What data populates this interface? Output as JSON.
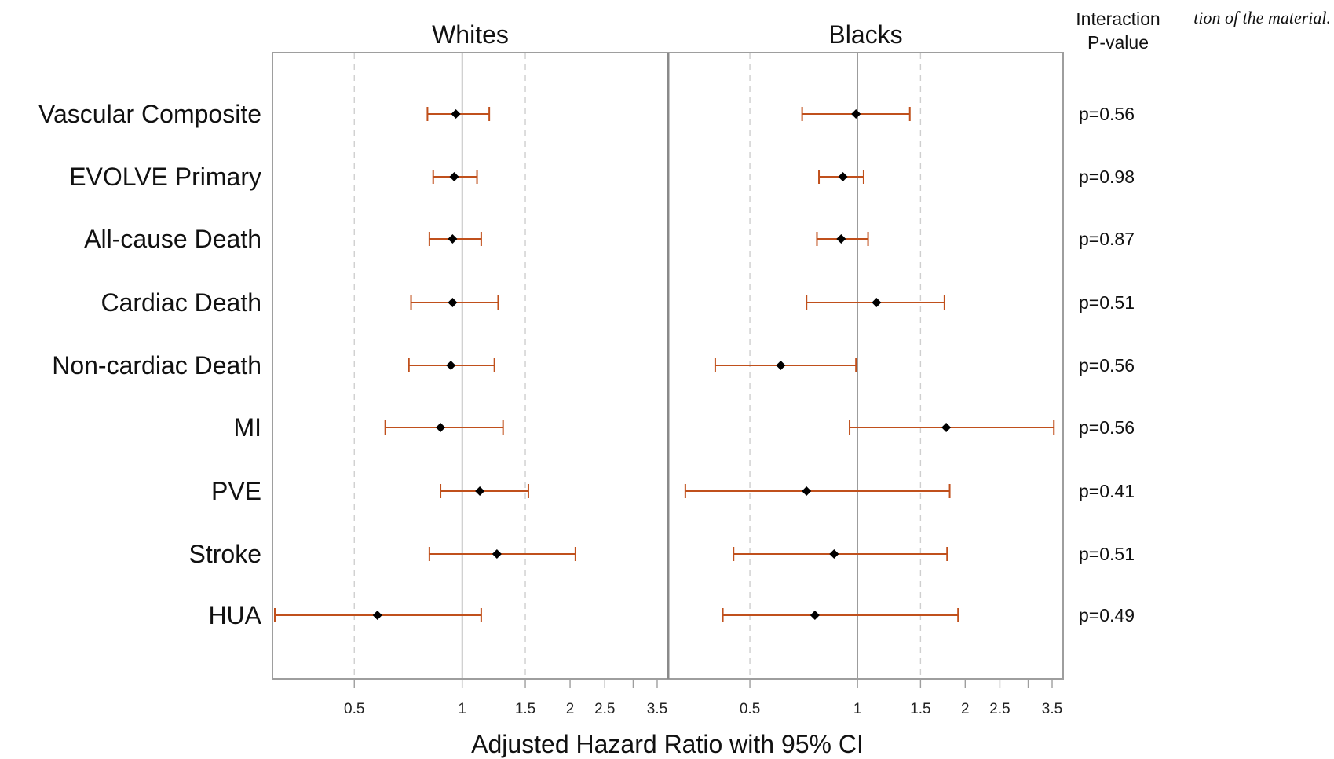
{
  "corner_note": "tion of the material.",
  "chart_data": {
    "type": "forest",
    "xlabel": "Adjusted Hazard Ratio with 95% CI",
    "x_scale": "log",
    "xlim": [
      0.3,
      3.7
    ],
    "x_ticks": [
      "0.5",
      "1",
      "1.5",
      "2",
      "2.5",
      "3.5"
    ],
    "x_tick_values": [
      0.5,
      1,
      1.5,
      2,
      2.5,
      3.5
    ],
    "x_ticks_extra": [
      3.0
    ],
    "reference_line": 1,
    "dashed_gridlines": [
      0.5,
      1.5
    ],
    "grid": false,
    "categories": [
      "Vascular Composite",
      "EVOLVE Primary",
      "All-cause Death",
      "Cardiac Death",
      "Non-cardiac Death",
      "MI",
      "PVE",
      "Stroke",
      "HUA"
    ],
    "panels": [
      {
        "title": "Whites",
        "estimates": [
          0.96,
          0.95,
          0.94,
          0.94,
          0.93,
          0.87,
          1.12,
          1.25,
          0.58
        ],
        "ci_lower": [
          0.8,
          0.83,
          0.81,
          0.72,
          0.71,
          0.61,
          0.87,
          0.81,
          0.3
        ],
        "ci_upper": [
          1.19,
          1.1,
          1.13,
          1.26,
          1.23,
          1.3,
          1.53,
          2.07,
          1.13
        ]
      },
      {
        "title": "Blacks",
        "estimates": [
          0.99,
          0.91,
          0.9,
          1.13,
          0.61,
          1.77,
          0.72,
          0.86,
          0.76
        ],
        "ci_lower": [
          0.7,
          0.78,
          0.77,
          0.72,
          0.4,
          0.95,
          0.33,
          0.45,
          0.42
        ],
        "ci_upper": [
          1.4,
          1.04,
          1.07,
          1.75,
          0.99,
          3.54,
          1.81,
          1.78,
          1.91
        ]
      }
    ],
    "p_value_header": [
      "Interaction",
      "P-value"
    ],
    "p_values": [
      "p=0.56",
      "p=0.98",
      "p=0.87",
      "p=0.51",
      "p=0.56",
      "p=0.56",
      "p=0.41",
      "p=0.51",
      "p=0.49"
    ],
    "colors": {
      "ci": "#c0501c",
      "point": "#000000",
      "frame": "#9e9e9e",
      "dashed_grid": "#cfcfcf"
    }
  }
}
